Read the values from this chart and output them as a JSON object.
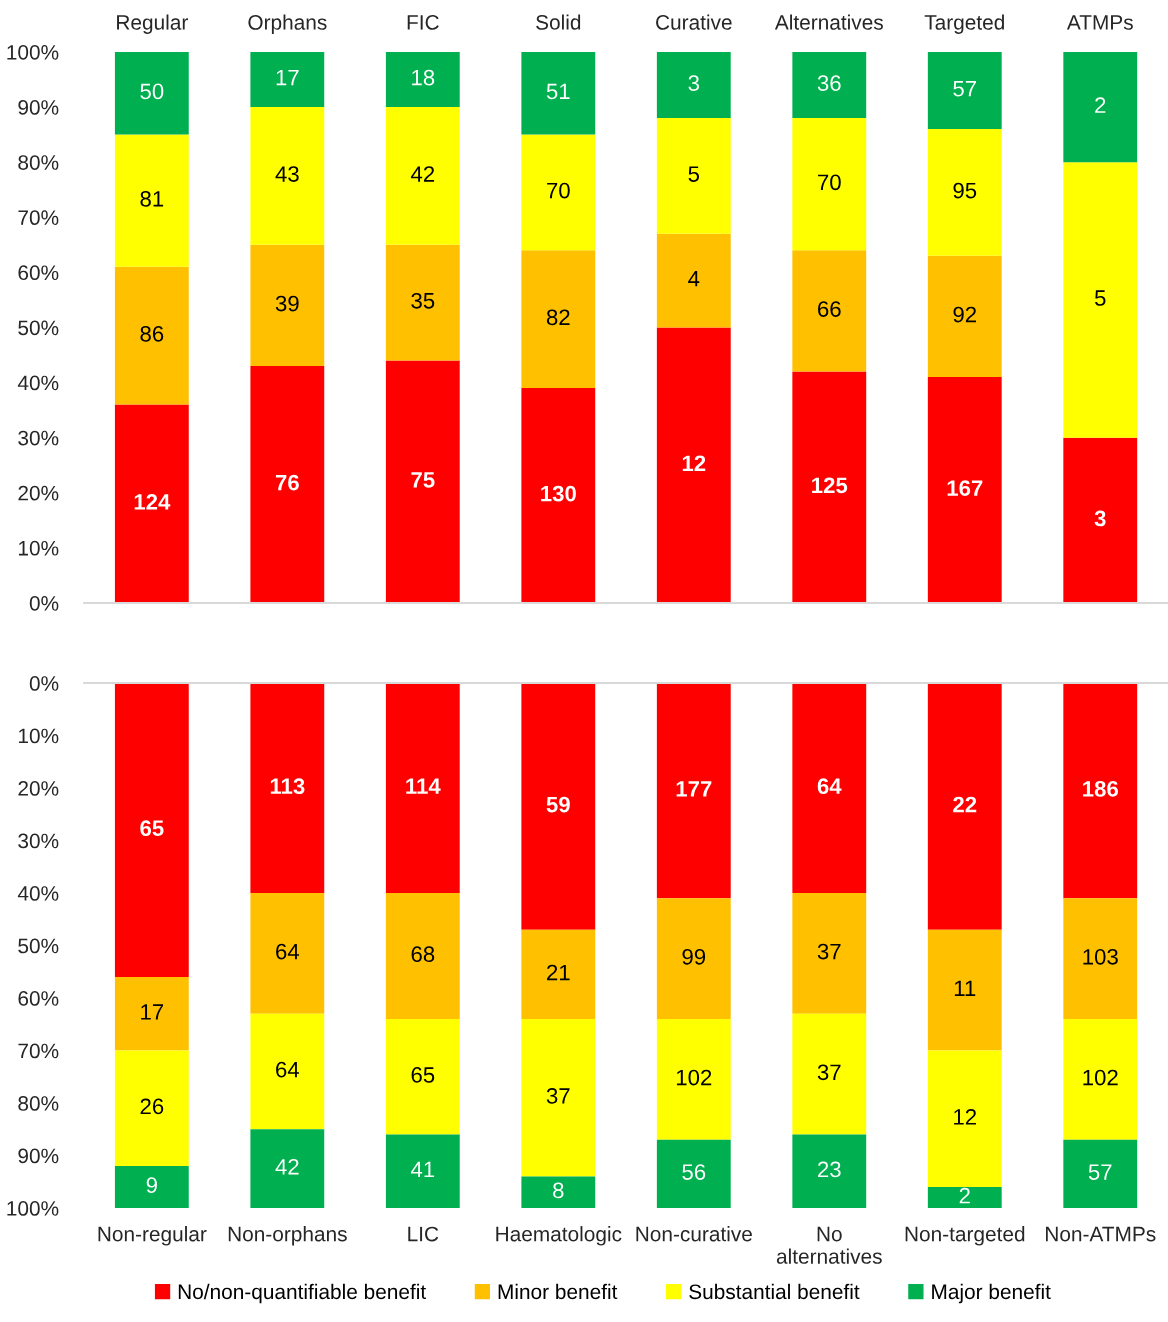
{
  "chart_data": [
    {
      "type": "bar",
      "stacked": true,
      "categories": [
        "Regular",
        "Orphans",
        "FIC",
        "Solid",
        "Curative",
        "Alternatives",
        "Targeted",
        "ATMPs"
      ],
      "ylim": [
        0,
        100
      ],
      "yticks": [
        {
          "value": 0,
          "label": "0%"
        },
        {
          "value": 10,
          "label": "10%"
        },
        {
          "value": 20,
          "label": "20%"
        },
        {
          "value": 30,
          "label": "30%"
        },
        {
          "value": 40,
          "label": "40%"
        },
        {
          "value": 50,
          "label": "50%"
        },
        {
          "value": 60,
          "label": "60%"
        },
        {
          "value": 70,
          "label": "70%"
        },
        {
          "value": 80,
          "label": "80%"
        },
        {
          "value": 90,
          "label": "90%"
        },
        {
          "value": 100,
          "label": "100%"
        }
      ],
      "series": [
        {
          "color": "#ff0000",
          "values": [
            36,
            43,
            44,
            39,
            50,
            42,
            41,
            30
          ]
        },
        {
          "color": "#ffc000",
          "values": [
            25,
            22,
            21,
            25,
            17,
            22,
            22,
            null
          ]
        },
        {
          "color": "#ffff00",
          "values": [
            24,
            25,
            25,
            21,
            21,
            24,
            23,
            50
          ]
        },
        {
          "color": "#00b050",
          "values": [
            15,
            10,
            10,
            15,
            12,
            12,
            14,
            20
          ]
        }
      ],
      "annotations": [
        "124",
        "76",
        "75",
        "130",
        "12",
        "125",
        "167",
        "3",
        "86",
        "39",
        "35",
        "82",
        "4",
        "66",
        "92",
        "81",
        "43",
        "42",
        "70",
        "5",
        "70",
        "95",
        "5",
        "50",
        "17",
        "18",
        "51",
        "3",
        "36",
        "57",
        "2"
      ]
    },
    {
      "type": "bar",
      "stacked": true,
      "categories": [
        "Non-regular",
        "Non-orphans",
        "LIC",
        "Haematologic",
        "Non-curative",
        "No\nalternatives",
        "Non-targeted",
        "Non-ATMPs"
      ],
      "ylim": [
        100,
        0
      ],
      "yticks": [
        {
          "value": 0,
          "label": "0%"
        },
        {
          "value": 10,
          "label": "10%"
        },
        {
          "value": 20,
          "label": "20%"
        },
        {
          "value": 30,
          "label": "30%"
        },
        {
          "value": 40,
          "label": "40%"
        },
        {
          "value": 50,
          "label": "50%"
        },
        {
          "value": 60,
          "label": "60%"
        },
        {
          "value": 70,
          "label": "70%"
        },
        {
          "value": 80,
          "label": "80%"
        },
        {
          "value": 90,
          "label": "90%"
        },
        {
          "value": 100,
          "label": "100%"
        }
      ],
      "legend": "bottom",
      "series": [
        {
          "name": "No/non-quantifiable benefit",
          "color": "#ff0000",
          "values": [
            56,
            40,
            40,
            47,
            41,
            40,
            47,
            41
          ]
        },
        {
          "name": "Minor benefit",
          "color": "#ffc000",
          "values": [
            14,
            23,
            24,
            17,
            23,
            23,
            23,
            23
          ]
        },
        {
          "name": "Substantial benefit",
          "color": "#ffff00",
          "values": [
            22,
            22,
            22,
            30,
            23,
            23,
            26,
            23
          ]
        },
        {
          "name": "Major benefit",
          "color": "#00b050",
          "values": [
            8,
            15,
            14,
            6,
            13,
            14,
            4,
            13
          ]
        }
      ],
      "annotations": [
        "65",
        "113",
        "114",
        "59",
        "177",
        "64",
        "22",
        "186",
        "17",
        "64",
        "68",
        "21",
        "99",
        "37",
        "11",
        "103",
        "26",
        "64",
        "65",
        "37",
        "102",
        "37",
        "12",
        "102",
        "9",
        "42",
        "41",
        "8",
        "56",
        "23",
        "2",
        "57"
      ]
    }
  ]
}
